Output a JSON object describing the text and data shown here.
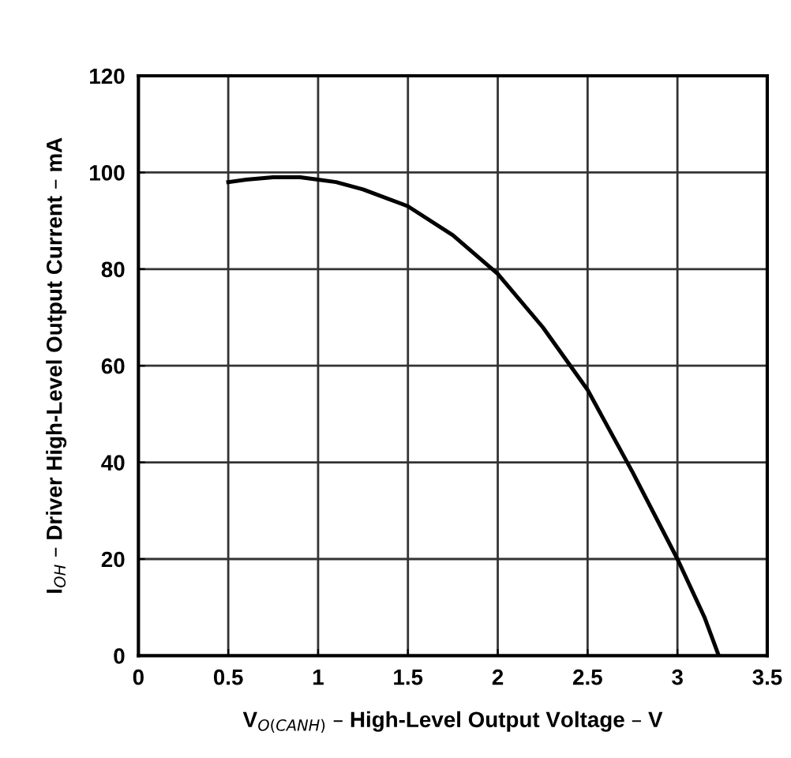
{
  "chart_data": {
    "type": "line",
    "xlabel": "V$_{O(CANH)}$ – High-Level Output Voltage – V",
    "ylabel": "I$_{OH}$ – Driver High-Level Output Current – mA",
    "x": [
      0.5,
      0.6,
      0.75,
      0.9,
      1.0,
      1.1,
      1.25,
      1.5,
      1.75,
      2.0,
      2.25,
      2.5,
      2.75,
      3.0,
      3.15,
      3.23
    ],
    "series": [
      {
        "color": "#000000",
        "values": [
          98,
          98.5,
          99,
          99,
          98.5,
          98,
          96.5,
          93,
          87,
          79,
          68,
          55,
          38,
          20,
          8,
          0
        ]
      }
    ],
    "xlim": [
      0,
      3.5
    ],
    "xticks": [
      0,
      0.5,
      1,
      1.5,
      2,
      2.5,
      3,
      3.5
    ],
    "ylim": [
      0,
      120
    ],
    "yticks": [
      0,
      20,
      40,
      60,
      80,
      100,
      120
    ],
    "grid": true,
    "marker": "none",
    "line_style": "solid"
  }
}
